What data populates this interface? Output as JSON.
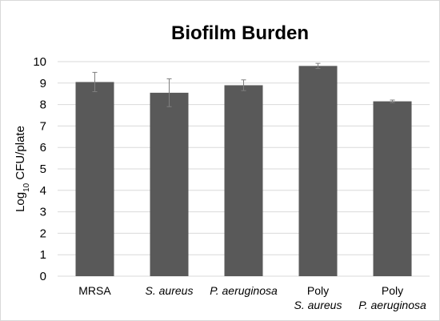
{
  "chart_data": {
    "type": "bar",
    "title": "Biofilm Burden",
    "ylabel": {
      "prefix": "Log",
      "subscript": "10",
      "suffix": " CFU/plate"
    },
    "xlabel": "",
    "ylim": [
      0,
      10
    ],
    "yticks": [
      "0",
      "1",
      "2",
      "3",
      "4",
      "5",
      "6",
      "7",
      "8",
      "9",
      "10"
    ],
    "categories": [
      {
        "line1": "MRSA",
        "line1_italic": false,
        "line2": "",
        "line2_italic": false
      },
      {
        "line1": "S. aureus",
        "line1_italic": true,
        "line2": "",
        "line2_italic": false
      },
      {
        "line1": "P. aeruginosa",
        "line1_italic": true,
        "line2": "",
        "line2_italic": false
      },
      {
        "line1": "Poly",
        "line1_italic": false,
        "line2": "S. aureus",
        "line2_italic": true
      },
      {
        "line1": "Poly",
        "line1_italic": false,
        "line2": "P. aeruginosa",
        "line2_italic": true
      }
    ],
    "values": [
      9.05,
      8.55,
      8.9,
      9.8,
      8.15
    ],
    "errors": [
      0.45,
      0.65,
      0.25,
      0.12,
      0.06
    ],
    "bar_color": "#595959",
    "grid": true,
    "grid_color": "#d9d9d9",
    "legend": "none"
  }
}
